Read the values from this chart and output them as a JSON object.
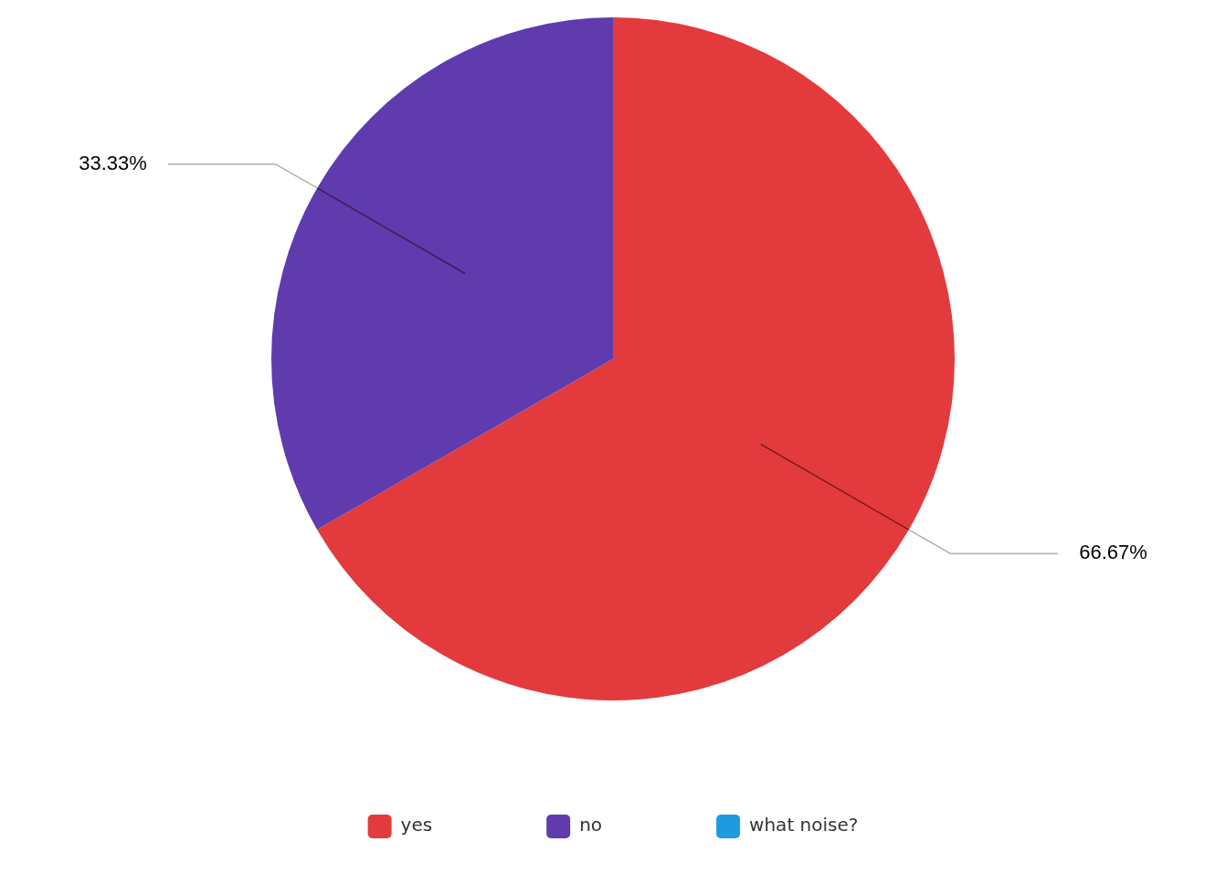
{
  "chart_data": {
    "type": "pie",
    "categories": [
      "yes",
      "no",
      "what noise?"
    ],
    "values": [
      66.67,
      33.33,
      0
    ],
    "colors": [
      "#e33b3d",
      "#5f3bae",
      "#1e9be0"
    ],
    "value_labels": [
      "66.67%",
      "33.33%",
      null
    ],
    "legend": "bottom"
  }
}
